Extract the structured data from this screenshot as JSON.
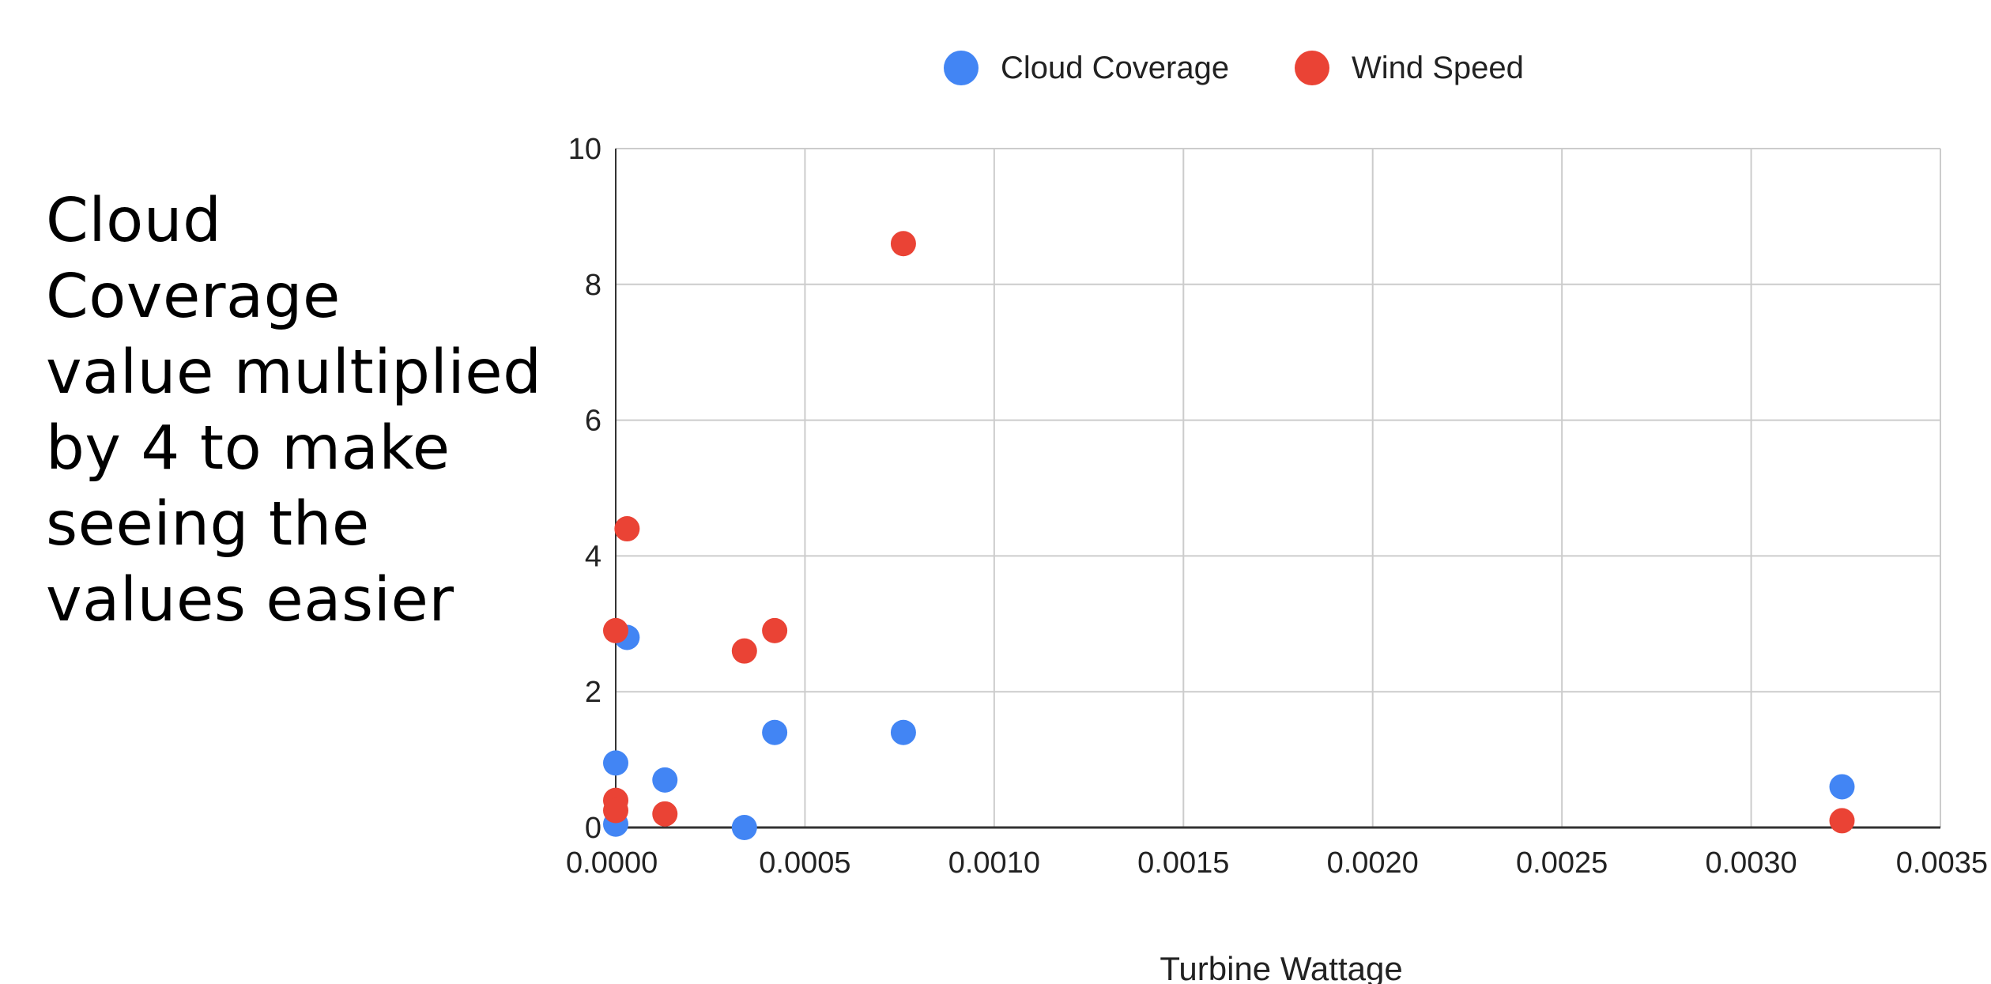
{
  "note_text": "Cloud\nCoverage\nvalue multiplied\nby 4 to make\nseeing the\nvalues easier",
  "chart_data": {
    "type": "scatter",
    "title": "",
    "xlabel": "Turbine Wattage",
    "ylabel": "",
    "xlim": [
      0.0,
      0.0035
    ],
    "ylim": [
      0,
      10
    ],
    "x_ticks": [
      "0.0000",
      "0.0005",
      "0.0010",
      "0.0015",
      "0.0020",
      "0.0025",
      "0.0030",
      "0.0035"
    ],
    "y_ticks": [
      "0",
      "2",
      "4",
      "6",
      "8",
      "10"
    ],
    "grid": true,
    "legend_position": "top-center",
    "series": [
      {
        "name": "Cloud Coverage",
        "color": "#4285F4",
        "points": [
          [
            0.0,
            0.95
          ],
          [
            0.0,
            0.05
          ],
          [
            3e-05,
            2.8
          ],
          [
            0.00013,
            0.7
          ],
          [
            0.00034,
            0.0
          ],
          [
            0.00042,
            1.4
          ],
          [
            0.00076,
            1.4
          ],
          [
            0.00324,
            0.6
          ]
        ]
      },
      {
        "name": "Wind Speed",
        "color": "#EA4335",
        "points": [
          [
            0.0,
            2.9
          ],
          [
            0.0,
            0.4
          ],
          [
            0.0,
            0.25
          ],
          [
            3e-05,
            4.4
          ],
          [
            0.00013,
            0.2
          ],
          [
            0.00034,
            2.6
          ],
          [
            0.00042,
            2.9
          ],
          [
            0.00076,
            8.6
          ],
          [
            0.00324,
            0.1
          ]
        ]
      }
    ]
  }
}
